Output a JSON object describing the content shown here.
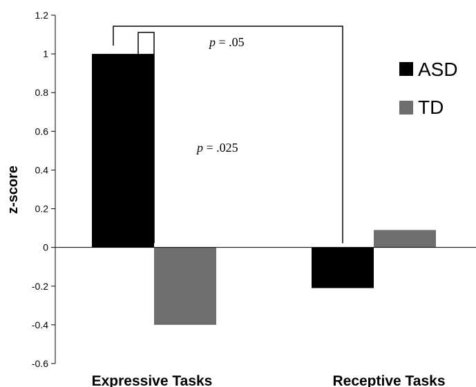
{
  "chart_data": {
    "type": "bar",
    "categories": [
      "Expressive Tasks",
      "Receptive Tasks"
    ],
    "series": [
      {
        "name": "ASD",
        "values": [
          1.0,
          -0.21
        ],
        "color": "#000000"
      },
      {
        "name": "TD",
        "values": [
          -0.4,
          0.09
        ],
        "color": "#6e6e6e"
      }
    ],
    "title": "",
    "xlabel": "",
    "ylabel": "z-score",
    "ylim": [
      -0.6,
      1.2
    ],
    "yticks": [
      "-0.6",
      "-0.4",
      "-0.2",
      "0",
      "0.2",
      "0.4",
      "0.6",
      "0.8",
      "1",
      "1.2"
    ],
    "grid": false,
    "legend_position": "right",
    "annotations": [
      {
        "p_label": "p",
        "rest": " = .05"
      },
      {
        "p_label": "p",
        "rest": " = .025"
      }
    ]
  }
}
